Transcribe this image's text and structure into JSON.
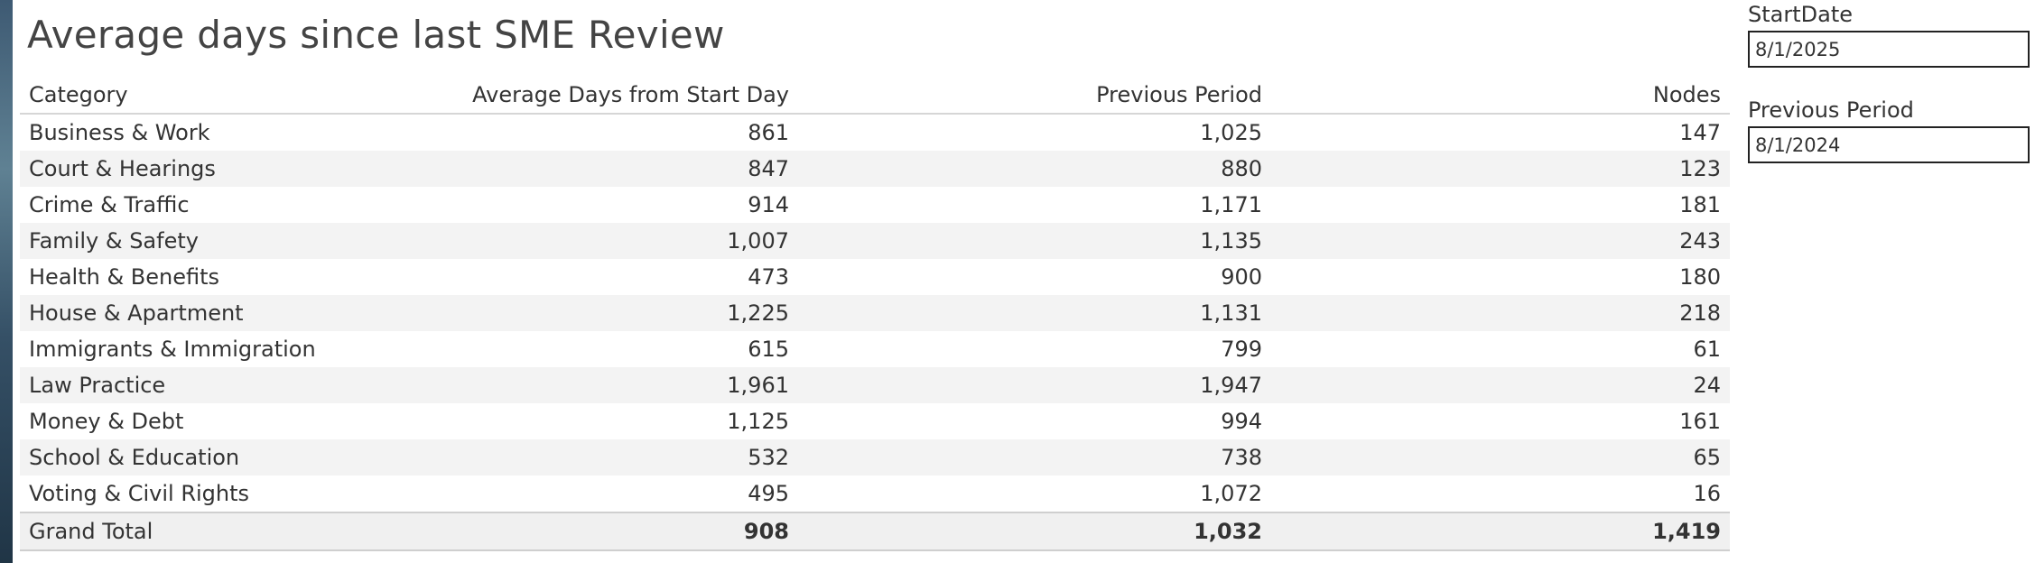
{
  "title": "Average days since last SME Review",
  "table": {
    "headers": [
      "Category",
      "Average Days from Start Day",
      "Previous Period",
      "Nodes"
    ],
    "rows": [
      [
        "Business & Work",
        "861",
        "1,025",
        "147"
      ],
      [
        "Court & Hearings",
        "847",
        "880",
        "123"
      ],
      [
        "Crime & Traffic",
        "914",
        "1,171",
        "181"
      ],
      [
        "Family & Safety",
        "1,007",
        "1,135",
        "243"
      ],
      [
        "Health & Benefits",
        "473",
        "900",
        "180"
      ],
      [
        "House & Apartment",
        "1,225",
        "1,131",
        "218"
      ],
      [
        "Immigrants & Immigration",
        "615",
        "799",
        "61"
      ],
      [
        "Law Practice",
        "1,961",
        "1,947",
        "24"
      ],
      [
        "Money & Debt",
        "1,125",
        "994",
        "161"
      ],
      [
        "School & Education",
        "532",
        "738",
        "65"
      ],
      [
        "Voting & Civil Rights",
        "495",
        "1,072",
        "16"
      ]
    ],
    "total": [
      "Grand Total",
      "908",
      "1,032",
      "1,419"
    ]
  },
  "params": {
    "start_date": {
      "label": "StartDate",
      "value": "8/1/2025"
    },
    "previous_period": {
      "label": "Previous Period",
      "value": "8/1/2024"
    }
  }
}
